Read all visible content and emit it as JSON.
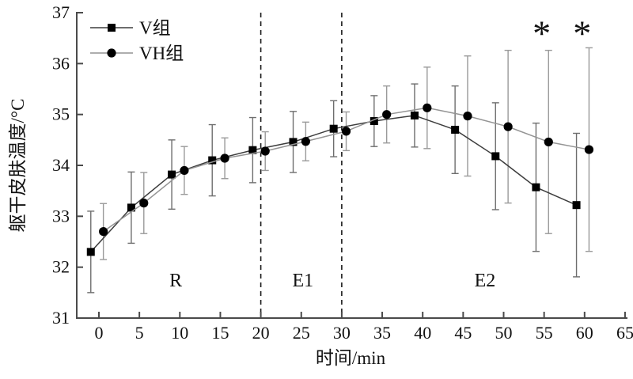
{
  "figure": {
    "x_axis_title": "时间/min",
    "y_axis_title": "躯干皮肤温度/°C"
  },
  "legend": {
    "items": [
      {
        "label": "V组",
        "marker": "square-marker-icon"
      },
      {
        "label": "VH组",
        "marker": "circle-marker-icon"
      }
    ]
  },
  "chart_data": {
    "type": "line",
    "title": "",
    "xlabel": "时间/min",
    "ylabel": "躯干皮肤温度/°C",
    "xlim": [
      -2.8,
      65
    ],
    "ylim": [
      31,
      37
    ],
    "grid": false,
    "legend_position": "top-left",
    "x_ticks": [
      0,
      5,
      10,
      15,
      20,
      25,
      30,
      35,
      40,
      45,
      50,
      55,
      60,
      65
    ],
    "y_ticks": [
      31,
      32,
      33,
      34,
      35,
      36,
      37
    ],
    "x": [
      0,
      5,
      10,
      15,
      20,
      25,
      30,
      35,
      40,
      45,
      50,
      55,
      60
    ],
    "series": [
      {
        "name": "V组",
        "marker": "square",
        "x_offset": -1.0,
        "values": [
          32.3,
          33.17,
          33.82,
          34.1,
          34.3,
          34.46,
          34.72,
          34.87,
          34.98,
          34.7,
          34.18,
          33.57,
          33.22
        ],
        "errors": [
          0.8,
          0.7,
          0.68,
          0.7,
          0.64,
          0.6,
          0.55,
          0.5,
          0.62,
          0.86,
          1.05,
          1.26,
          1.41
        ]
      },
      {
        "name": "VH组",
        "marker": "circle",
        "x_offset": 0.55,
        "values": [
          32.7,
          33.26,
          33.9,
          34.14,
          34.28,
          34.47,
          34.67,
          35.0,
          35.13,
          34.97,
          34.76,
          34.46,
          34.31
        ],
        "errors": [
          0.55,
          0.6,
          0.47,
          0.4,
          0.38,
          0.38,
          0.38,
          0.56,
          0.8,
          1.18,
          1.5,
          1.8,
          2.0
        ]
      }
    ],
    "phase_lines": [
      {
        "x": 20
      },
      {
        "x": 30
      }
    ],
    "phase_labels": [
      {
        "text": "R",
        "x": 9.5
      },
      {
        "text": "E1",
        "x": 25.2
      },
      {
        "text": "E2",
        "x": 47.7
      }
    ],
    "annotations": [
      {
        "text": "*",
        "x": 54.7,
        "y": 36.7
      },
      {
        "text": "*",
        "x": 59.7,
        "y": 36.7
      }
    ],
    "colors": {
      "v_line": "#3d3d3d",
      "vh_line": "#949494",
      "marker_fill": "#000000",
      "v_error_bar": "#6e6e6e",
      "vh_error_bar": "#9a9a9a",
      "axis": "#4a4a4a",
      "dashed_line": "#1a1a1a",
      "text": "#111111"
    }
  }
}
